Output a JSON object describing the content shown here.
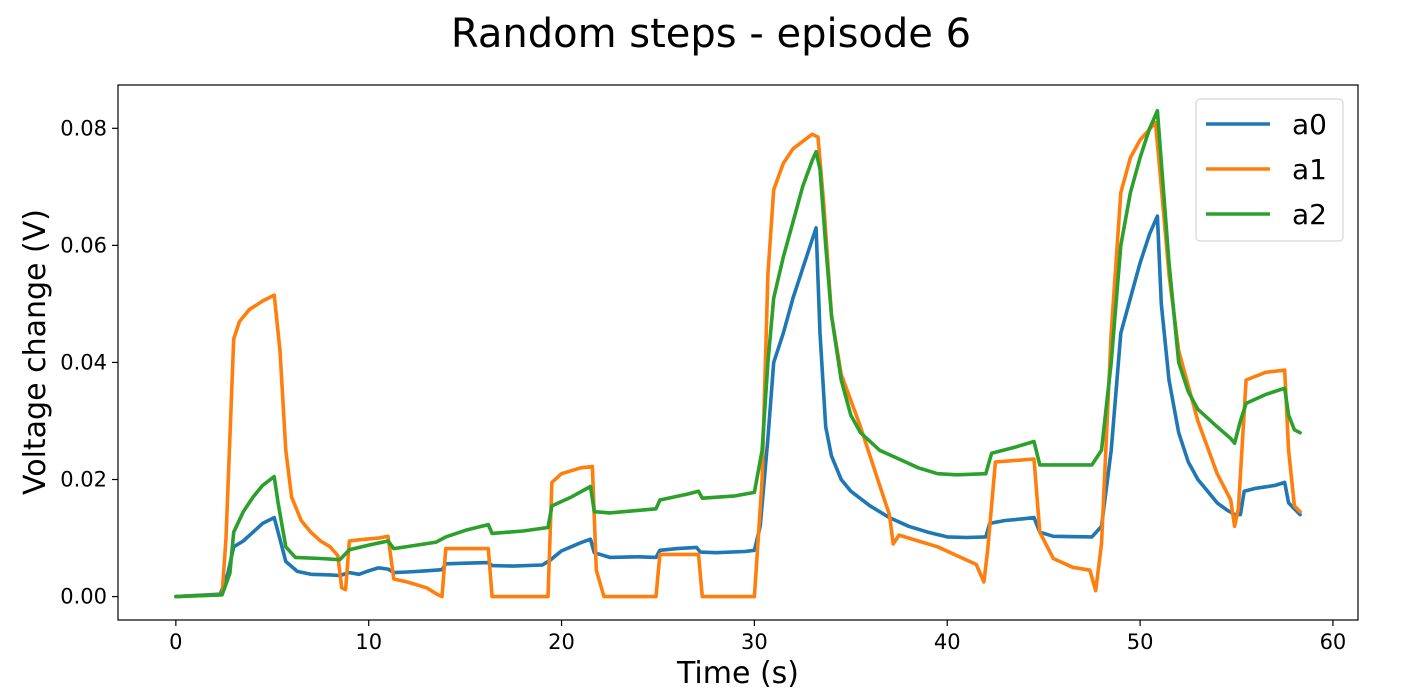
{
  "chart_data": {
    "type": "line",
    "title": "Random steps - episode 6",
    "xlabel": "Time (s)",
    "ylabel": "Voltage change (V)",
    "xlim": [
      -3,
      61.3
    ],
    "ylim": [
      -0.004,
      0.0874
    ],
    "xticks": [
      0,
      10,
      20,
      30,
      40,
      50,
      60
    ],
    "yticks": [
      0.0,
      0.02,
      0.04,
      0.06,
      0.08
    ],
    "ytick_labels": [
      "0.00",
      "0.02",
      "0.04",
      "0.06",
      "0.08"
    ],
    "grid": false,
    "legend_position": "top-right",
    "series": [
      {
        "name": "a0",
        "color": "#1f77b4",
        "points": [
          [
            0,
            0
          ],
          [
            2.3,
            0.0004
          ],
          [
            2.7,
            0.004
          ],
          [
            3.0,
            0.0085
          ],
          [
            3.5,
            0.0095
          ],
          [
            4.0,
            0.011
          ],
          [
            4.5,
            0.0125
          ],
          [
            5.1,
            0.0135
          ],
          [
            5.3,
            0.011
          ],
          [
            5.7,
            0.006
          ],
          [
            6.3,
            0.0043
          ],
          [
            7.0,
            0.0038
          ],
          [
            8.0,
            0.0037
          ],
          [
            8.5,
            0.0036
          ],
          [
            9.0,
            0.0041
          ],
          [
            9.5,
            0.0038
          ],
          [
            10.0,
            0.0044
          ],
          [
            10.5,
            0.0049
          ],
          [
            11.0,
            0.0047
          ],
          [
            11.3,
            0.0041
          ],
          [
            12.0,
            0.0042
          ],
          [
            13.0,
            0.0044
          ],
          [
            13.8,
            0.0046
          ],
          [
            14.0,
            0.0056
          ],
          [
            15.0,
            0.0057
          ],
          [
            16.2,
            0.0058
          ],
          [
            16.4,
            0.0053
          ],
          [
            17.5,
            0.0052
          ],
          [
            19.0,
            0.0054
          ],
          [
            19.4,
            0.0062
          ],
          [
            20.0,
            0.0078
          ],
          [
            21.0,
            0.0092
          ],
          [
            21.5,
            0.0098
          ],
          [
            21.7,
            0.0075
          ],
          [
            22.5,
            0.0067
          ],
          [
            24.0,
            0.0068
          ],
          [
            24.9,
            0.0067
          ],
          [
            25.1,
            0.0079
          ],
          [
            26.0,
            0.0082
          ],
          [
            27.0,
            0.0084
          ],
          [
            27.2,
            0.0076
          ],
          [
            28.0,
            0.0075
          ],
          [
            29.5,
            0.0077
          ],
          [
            30.0,
            0.0079
          ],
          [
            30.3,
            0.012
          ],
          [
            30.7,
            0.027
          ],
          [
            31.0,
            0.04
          ],
          [
            31.5,
            0.045
          ],
          [
            32.0,
            0.051
          ],
          [
            32.5,
            0.056
          ],
          [
            33.0,
            0.061
          ],
          [
            33.2,
            0.063
          ],
          [
            33.4,
            0.045
          ],
          [
            33.7,
            0.029
          ],
          [
            34.0,
            0.024
          ],
          [
            34.5,
            0.02
          ],
          [
            35.0,
            0.018
          ],
          [
            36.0,
            0.0155
          ],
          [
            37.0,
            0.0135
          ],
          [
            38.0,
            0.012
          ],
          [
            39.0,
            0.011
          ],
          [
            40.0,
            0.0102
          ],
          [
            41.0,
            0.0101
          ],
          [
            42.0,
            0.0102
          ],
          [
            42.2,
            0.0125
          ],
          [
            43.0,
            0.013
          ],
          [
            44.0,
            0.0133
          ],
          [
            44.5,
            0.0135
          ],
          [
            44.8,
            0.011
          ],
          [
            45.5,
            0.0103
          ],
          [
            47.5,
            0.0102
          ],
          [
            48.0,
            0.012
          ],
          [
            48.5,
            0.025
          ],
          [
            49.0,
            0.045
          ],
          [
            49.5,
            0.051
          ],
          [
            50.0,
            0.057
          ],
          [
            50.5,
            0.062
          ],
          [
            50.9,
            0.065
          ],
          [
            51.1,
            0.05
          ],
          [
            51.5,
            0.037
          ],
          [
            52.0,
            0.028
          ],
          [
            52.5,
            0.023
          ],
          [
            53.0,
            0.02
          ],
          [
            53.5,
            0.018
          ],
          [
            54.0,
            0.016
          ],
          [
            54.5,
            0.0148
          ],
          [
            54.9,
            0.014
          ],
          [
            55.2,
            0.014
          ],
          [
            55.4,
            0.018
          ],
          [
            56.0,
            0.0185
          ],
          [
            57.0,
            0.019
          ],
          [
            57.5,
            0.0195
          ],
          [
            57.7,
            0.016
          ],
          [
            58.3,
            0.014
          ]
        ]
      },
      {
        "name": "a1",
        "color": "#ff7f0e",
        "points": [
          [
            0,
            0
          ],
          [
            2.4,
            0.0003
          ],
          [
            2.6,
            0.01
          ],
          [
            3.0,
            0.044
          ],
          [
            3.3,
            0.047
          ],
          [
            3.8,
            0.049
          ],
          [
            4.5,
            0.0505
          ],
          [
            5.1,
            0.0515
          ],
          [
            5.4,
            0.042
          ],
          [
            5.7,
            0.025
          ],
          [
            6.0,
            0.017
          ],
          [
            6.5,
            0.013
          ],
          [
            7.0,
            0.011
          ],
          [
            7.5,
            0.0095
          ],
          [
            8.0,
            0.0085
          ],
          [
            8.4,
            0.007
          ],
          [
            8.6,
            0.0015
          ],
          [
            8.8,
            0.0012
          ],
          [
            9.0,
            0.0095
          ],
          [
            9.5,
            0.0097
          ],
          [
            10.5,
            0.01
          ],
          [
            11.0,
            0.0103
          ],
          [
            11.3,
            0.003
          ],
          [
            12.0,
            0.0025
          ],
          [
            13.0,
            0.0015
          ],
          [
            13.6,
            0.0003
          ],
          [
            13.8,
            0
          ],
          [
            14.0,
            0.0082
          ],
          [
            16.2,
            0.0082
          ],
          [
            16.4,
            0
          ],
          [
            19.3,
            0
          ],
          [
            19.5,
            0.0195
          ],
          [
            20.0,
            0.021
          ],
          [
            21.0,
            0.022
          ],
          [
            21.6,
            0.0222
          ],
          [
            21.8,
            0.0045
          ],
          [
            22.2,
            0
          ],
          [
            24.9,
            0
          ],
          [
            25.1,
            0.0072
          ],
          [
            27.1,
            0.0072
          ],
          [
            27.3,
            0
          ],
          [
            30.0,
            0
          ],
          [
            30.4,
            0.02
          ],
          [
            30.7,
            0.055
          ],
          [
            31.0,
            0.0695
          ],
          [
            31.5,
            0.074
          ],
          [
            32.0,
            0.0765
          ],
          [
            33.0,
            0.079
          ],
          [
            33.3,
            0.0785
          ],
          [
            33.6,
            0.067
          ],
          [
            34.0,
            0.048
          ],
          [
            34.5,
            0.038
          ],
          [
            35.5,
            0.029
          ],
          [
            36.5,
            0.019
          ],
          [
            37.0,
            0.014
          ],
          [
            37.2,
            0.009
          ],
          [
            37.5,
            0.0105
          ],
          [
            38.5,
            0.0095
          ],
          [
            39.5,
            0.0085
          ],
          [
            40.5,
            0.007
          ],
          [
            41.5,
            0.0055
          ],
          [
            41.9,
            0.0025
          ],
          [
            42.1,
            0.008
          ],
          [
            42.5,
            0.023
          ],
          [
            44.5,
            0.0235
          ],
          [
            44.8,
            0.011
          ],
          [
            45.5,
            0.0065
          ],
          [
            46.5,
            0.005
          ],
          [
            47.4,
            0.0045
          ],
          [
            47.7,
            0.001
          ],
          [
            48.0,
            0.009
          ],
          [
            48.5,
            0.045
          ],
          [
            49.0,
            0.069
          ],
          [
            49.5,
            0.075
          ],
          [
            50.0,
            0.078
          ],
          [
            50.8,
            0.081
          ],
          [
            51.1,
            0.07
          ],
          [
            51.5,
            0.055
          ],
          [
            52.0,
            0.042
          ],
          [
            53.0,
            0.03
          ],
          [
            54.0,
            0.021
          ],
          [
            54.7,
            0.0165
          ],
          [
            54.9,
            0.012
          ],
          [
            55.1,
            0.015
          ],
          [
            55.5,
            0.037
          ],
          [
            56.5,
            0.0383
          ],
          [
            57.5,
            0.0387
          ],
          [
            57.7,
            0.025
          ],
          [
            58.0,
            0.0155
          ],
          [
            58.3,
            0.0145
          ]
        ]
      },
      {
        "name": "a2",
        "color": "#2ca02c",
        "points": [
          [
            0,
            0
          ],
          [
            2.4,
            0.0003
          ],
          [
            2.8,
            0.004
          ],
          [
            3.0,
            0.011
          ],
          [
            3.5,
            0.0145
          ],
          [
            4.0,
            0.017
          ],
          [
            4.5,
            0.019
          ],
          [
            5.1,
            0.0205
          ],
          [
            5.3,
            0.016
          ],
          [
            5.7,
            0.0085
          ],
          [
            6.2,
            0.0067
          ],
          [
            7.5,
            0.0065
          ],
          [
            8.5,
            0.0063
          ],
          [
            9.0,
            0.008
          ],
          [
            10.0,
            0.0088
          ],
          [
            11.0,
            0.0095
          ],
          [
            11.3,
            0.0082
          ],
          [
            12.5,
            0.0088
          ],
          [
            13.5,
            0.0093
          ],
          [
            14.0,
            0.0102
          ],
          [
            15.0,
            0.0113
          ],
          [
            16.2,
            0.0123
          ],
          [
            16.4,
            0.0108
          ],
          [
            18.0,
            0.0112
          ],
          [
            19.3,
            0.0118
          ],
          [
            19.5,
            0.0155
          ],
          [
            20.5,
            0.017
          ],
          [
            21.5,
            0.0188
          ],
          [
            21.7,
            0.0145
          ],
          [
            22.5,
            0.0143
          ],
          [
            24.9,
            0.015
          ],
          [
            25.1,
            0.0165
          ],
          [
            26.5,
            0.0175
          ],
          [
            27.1,
            0.018
          ],
          [
            27.3,
            0.0168
          ],
          [
            29.0,
            0.0172
          ],
          [
            30.0,
            0.0178
          ],
          [
            30.4,
            0.025
          ],
          [
            30.7,
            0.04
          ],
          [
            31.0,
            0.051
          ],
          [
            31.5,
            0.058
          ],
          [
            32.0,
            0.064
          ],
          [
            32.5,
            0.07
          ],
          [
            33.0,
            0.0745
          ],
          [
            33.2,
            0.076
          ],
          [
            33.4,
            0.073
          ],
          [
            33.7,
            0.06
          ],
          [
            34.0,
            0.048
          ],
          [
            34.5,
            0.037
          ],
          [
            35.0,
            0.031
          ],
          [
            35.5,
            0.028
          ],
          [
            36.5,
            0.025
          ],
          [
            37.5,
            0.0235
          ],
          [
            38.5,
            0.022
          ],
          [
            39.5,
            0.021
          ],
          [
            40.5,
            0.0208
          ],
          [
            42.0,
            0.021
          ],
          [
            42.3,
            0.0245
          ],
          [
            43.5,
            0.0255
          ],
          [
            44.5,
            0.0265
          ],
          [
            44.8,
            0.0225
          ],
          [
            46.0,
            0.0225
          ],
          [
            47.5,
            0.0225
          ],
          [
            48.0,
            0.025
          ],
          [
            48.5,
            0.04
          ],
          [
            49.0,
            0.06
          ],
          [
            49.5,
            0.069
          ],
          [
            50.0,
            0.075
          ],
          [
            50.5,
            0.08
          ],
          [
            50.9,
            0.083
          ],
          [
            51.2,
            0.07
          ],
          [
            51.5,
            0.057
          ],
          [
            52.0,
            0.04
          ],
          [
            52.5,
            0.035
          ],
          [
            53.0,
            0.032
          ],
          [
            54.0,
            0.029
          ],
          [
            54.7,
            0.027
          ],
          [
            54.9,
            0.0262
          ],
          [
            55.2,
            0.03
          ],
          [
            55.5,
            0.033
          ],
          [
            56.5,
            0.0345
          ],
          [
            57.5,
            0.0356
          ],
          [
            57.7,
            0.031
          ],
          [
            58.0,
            0.0285
          ],
          [
            58.3,
            0.028
          ]
        ]
      }
    ]
  }
}
